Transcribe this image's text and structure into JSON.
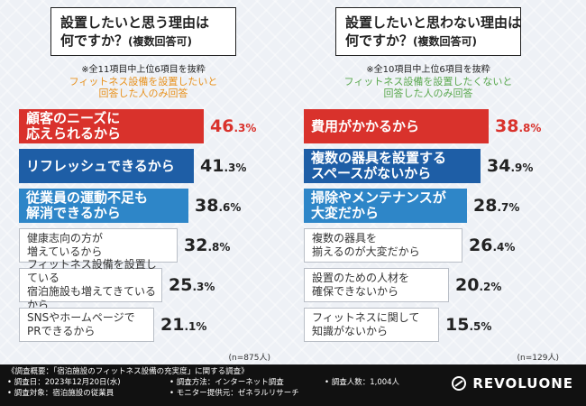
{
  "colors": {
    "red": "#d9322c",
    "dark_blue": "#1e5ea6",
    "mid_blue": "#2e86c8",
    "gray_border": "#b9bec6",
    "orange_text": "#e8911c",
    "green_text": "#5aa84e"
  },
  "chart_data": [
    {
      "type": "bar",
      "orientation": "horizontal",
      "title": "設置したいと思う理由は何ですか？(複数回答可)",
      "note": "※全11項目中上位6項目を抜粋",
      "subtitle": "フィットネス設備を設置したいと回答した人のみ回答",
      "categories": [
        "顧客のニーズに応えられるから",
        "リフレッシュできるから",
        "従業員の運動不足も解消できるから",
        "健康志向の方が増えているから",
        "フィットネス設備を設置している宿泊施設も増えてきているから",
        "SNSやホームページでPRできるから"
      ],
      "values": [
        46.3,
        41.3,
        38.6,
        32.8,
        25.3,
        21.1
      ],
      "unit": "%",
      "sample": "(n=875人)"
    },
    {
      "type": "bar",
      "orientation": "horizontal",
      "title": "設置したいと思わない理由は何ですか？(複数回答可)",
      "note": "※全10項目中上位6項目を抜粋",
      "subtitle": "フィットネス設備を設置したくないと回答した人のみ回答",
      "categories": [
        "費用がかかるから",
        "複数の器具を設置するスペースがないから",
        "掃除やメンテナンスが大変だから",
        "複数の器具を揃えるのが大変だから",
        "設置のための人材を確保できないから",
        "フィットネスに関して知識がないから"
      ],
      "values": [
        38.8,
        34.9,
        28.7,
        26.4,
        20.2,
        15.5
      ],
      "unit": "%",
      "sample": "(n=129人)"
    }
  ],
  "left": {
    "title_line1": "設置したいと思う理由は",
    "title_line2": "何ですか？",
    "title_small": "(複数回答可)",
    "note": "※全11項目中上位6項目を抜粋",
    "cond": "フィットネス設備を設置したいと\n回答した人のみ回答",
    "n": "(n=875人)",
    "rows": [
      {
        "label": "顧客のニーズに\n応えられるから",
        "int": "46",
        "dec": ".3%",
        "style": "red"
      },
      {
        "label": "リフレッシュできるから",
        "int": "41",
        "dec": ".3%",
        "style": "dark_blue"
      },
      {
        "label": "従業員の運動不足も\n解消できるから",
        "int": "38",
        "dec": ".6%",
        "style": "mid_blue"
      },
      {
        "label": "健康志向の方が\n増えているから",
        "int": "32",
        "dec": ".8%",
        "style": "gray"
      },
      {
        "label": "フィットネス設備を設置している\n宿泊施設も増えてきているから",
        "int": "25",
        "dec": ".3%",
        "style": "gray"
      },
      {
        "label": "SNSやホームページで\nPRできるから",
        "int": "21",
        "dec": ".1%",
        "style": "gray"
      }
    ]
  },
  "right": {
    "title_line1": "設置したいと思わない理由は",
    "title_line2": "何ですか？",
    "title_small": "(複数回答可)",
    "note": "※全10項目中上位6項目を抜粋",
    "cond": "フィットネス設備を設置したくないと\n回答した人のみ回答",
    "n": "(n=129人)",
    "rows": [
      {
        "label": "費用がかかるから",
        "int": "38",
        "dec": ".8%",
        "style": "red"
      },
      {
        "label": "複数の器具を設置する\nスペースがないから",
        "int": "34",
        "dec": ".9%",
        "style": "dark_blue"
      },
      {
        "label": "掃除やメンテナンスが\n大変だから",
        "int": "28",
        "dec": ".7%",
        "style": "mid_blue"
      },
      {
        "label": "複数の器具を\n揃えるのが大変だから",
        "int": "26",
        "dec": ".4%",
        "style": "gray"
      },
      {
        "label": "設置のための人材を\n確保できないから",
        "int": "20",
        "dec": ".2%",
        "style": "gray"
      },
      {
        "label": "フィットネスに関して\n知識がないから",
        "int": "15",
        "dec": ".5%",
        "style": "gray"
      }
    ]
  },
  "footer": {
    "overview": "《調査概要：「宿泊施設のフィットネス設備の充実度」に関する調査》",
    "date": "• 調査日：2023年12月20日(水)",
    "method": "• 調査方法：インターネット調査",
    "respondents": "• 調査人数：1,004人",
    "target": "• 調査対象：宿泊施設の従業員",
    "monitor": "• モニター提供元：ゼネラルリサーチ",
    "brand": "REVOLUONE"
  }
}
